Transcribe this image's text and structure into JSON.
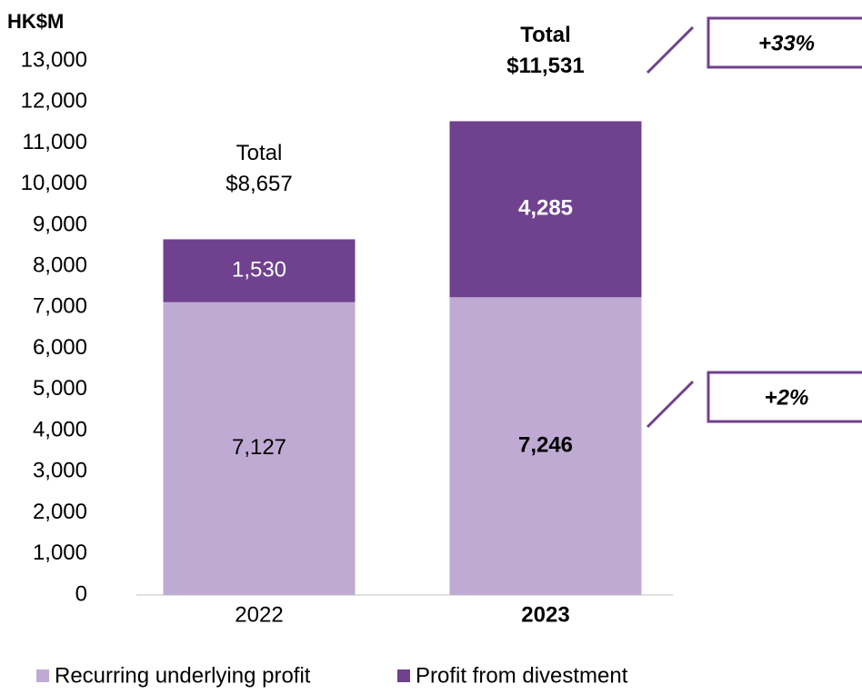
{
  "chart_data": {
    "type": "stacked_bar",
    "y_axis_label": "HK$M",
    "categories": [
      "2022",
      "2023"
    ],
    "series": [
      {
        "name": "Recurring underlying profit",
        "color": "#bfaad4",
        "values": [
          7127,
          7246
        ],
        "value_labels": [
          "7,127",
          "7,246"
        ]
      },
      {
        "name": "Profit from divestment",
        "color": "#6f418e",
        "values": [
          1530,
          4285
        ],
        "value_labels": [
          "1,530",
          "4,285"
        ]
      }
    ],
    "total_title": "Total",
    "totals": [
      8657,
      11531
    ],
    "total_labels": [
      "$8,657",
      "$11,531"
    ],
    "annotations": [
      "+2%",
      "+33%"
    ],
    "ylim": [
      0,
      13000
    ],
    "yticks": [
      0,
      {
        "value": 1000,
        "label": "1,000"
      },
      {
        "value": 2000,
        "label": "2,000"
      },
      {
        "value": 3000,
        "label": "3,000"
      },
      {
        "value": 4000,
        "label": "4,000"
      },
      {
        "value": 5000,
        "label": "5,000"
      },
      {
        "value": 6000,
        "label": "6,000"
      },
      {
        "value": 7000,
        "label": "7,000"
      },
      {
        "value": 8000,
        "label": "8,000"
      },
      {
        "value": 9000,
        "label": "9,000"
      },
      {
        "value": 10000,
        "label": "10,000"
      },
      {
        "value": 11000,
        "label": "11,000"
      },
      {
        "value": 12000,
        "label": "12,000"
      },
      {
        "value": 13000,
        "label": "13,000"
      }
    ],
    "grid": false
  }
}
